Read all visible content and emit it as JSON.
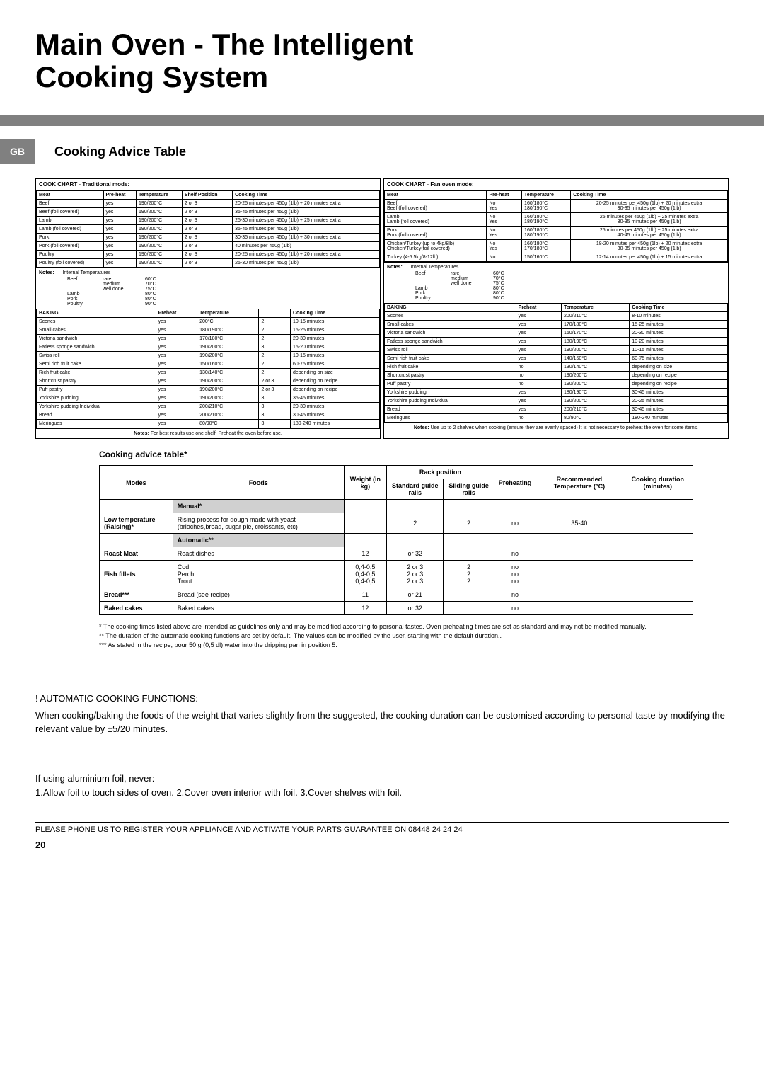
{
  "title_line1": "Main Oven - The Intelligent",
  "title_line2": "Cooking System",
  "gb_badge": "GB",
  "subtitle": "Cooking Advice Table",
  "traditional": {
    "title": "COOK CHART - Traditional mode:",
    "headers": [
      "Meat",
      "Pre-heat",
      "Temperature",
      "Shelf Position",
      "Cooking Time"
    ],
    "rows": [
      [
        "Beef",
        "yes",
        "190/200°C",
        "2 or 3",
        "20-25 minutes per 450g (1lb) + 20 minutes extra"
      ],
      [
        "Beef (foil covered)",
        "yes",
        "190/200°C",
        "2 or 3",
        "35-45 minutes per 450g (1lb)"
      ],
      [
        "Lamb",
        "yes",
        "190/200°C",
        "2 or 3",
        "25-30 minutes per 450g (1lb) + 25 minutes extra"
      ],
      [
        "Lamb (foil covered)",
        "yes",
        "190/200°C",
        "2 or 3",
        "35-45 minutes per 450g (1lb)"
      ],
      [
        "Pork",
        "yes",
        "190/200°C",
        "2 or 3",
        "30-35 minutes per 450g (1lb) + 30 minutes extra"
      ],
      [
        "Pork (foil covered)",
        "yes",
        "190/200°C",
        "2 or 3",
        "40 minutes per 450g (1lb)"
      ],
      [
        "Poultry",
        "yes",
        "190/200°C",
        "2 or 3",
        "20-25 minutes per 450g (1lb) + 20 minutes extra"
      ],
      [
        "Poultry (foil covered)",
        "yes",
        "190/200°C",
        "2 or 3",
        "25-30 minutes per 450g (1lb)"
      ]
    ],
    "notes_title": "Notes:",
    "notes_sub": "Internal Temperatures",
    "temps": [
      [
        "Beef",
        "rare",
        "60°C"
      ],
      [
        "",
        "medium",
        "70°C"
      ],
      [
        "",
        "well done",
        "75°C"
      ],
      [
        "Lamb",
        "",
        "80°C"
      ],
      [
        "Pork",
        "",
        "80°C"
      ],
      [
        "Poultry",
        "",
        "90°C"
      ]
    ],
    "baking_headers": [
      "BAKING",
      "Preheat",
      "Temperature",
      "",
      "Cooking Time"
    ],
    "baking_rows": [
      [
        "Scones",
        "yes",
        "200°C",
        "2",
        "10-15 minutes"
      ],
      [
        "Small cakes",
        "yes",
        "180/190°C",
        "2",
        "15-25 minutes"
      ],
      [
        "Victoria sandwich",
        "yes",
        "170/180°C",
        "2",
        "20-30 minutes"
      ],
      [
        "Fatless sponge sandwich",
        "yes",
        "190/200°C",
        "3",
        "15-20 minutes"
      ],
      [
        "Swiss roll",
        "yes",
        "190/200°C",
        "2",
        "10-15 minutes"
      ],
      [
        "Semi rich fruit cake",
        "yes",
        "150/160°C",
        "2",
        "60-75 minutes"
      ],
      [
        "Rich fruit cake",
        "yes",
        "130/140°C",
        "2",
        "depending on size"
      ],
      [
        "Shortcrust pastry",
        "yes",
        "190/200°C",
        "2 or 3",
        "depending on recipe"
      ],
      [
        "Puff pastry",
        "yes",
        "190/200°C",
        "2 or 3",
        "depending on recipe"
      ],
      [
        "Yorkshire pudding",
        "yes",
        "190/200°C",
        "3",
        "35-45 minutes"
      ],
      [
        "Yorkshire pudding Individual",
        "yes",
        "200/210°C",
        "3",
        "20-30 minutes"
      ],
      [
        "Bread",
        "yes",
        "200/210°C",
        "3",
        "30-45 minutes"
      ],
      [
        "Meringues",
        "yes",
        "80/90°C",
        "3",
        "180-240 minutes"
      ]
    ],
    "footer_note": "For best results use one shelf. Preheat the oven before use."
  },
  "fan": {
    "title": "COOK CHART - Fan oven mode:",
    "headers": [
      "Meat",
      "Pre-heat",
      "Temperature",
      "Cooking Time"
    ],
    "rows": [
      [
        "Beef\nBeef (foil covered)",
        "No\nYes",
        "160/180°C\n180/190°C",
        "20-25 minutes per 450g (1lb) + 20 minutes extra\n30-35 minutes per 450g (1lb)"
      ],
      [
        "Lamb\nLamb (foil covered)",
        "No\nYes",
        "160/180°C\n180/190°C",
        "25 minutes per 450g (1lb) + 25 minutes extra\n30-35 minutes per 450g (1lb)"
      ],
      [
        "Pork\nPork (foil covered)",
        "No\nYes",
        "160/180°C\n180/190°C",
        "25 minutes per 450g (1lb) + 25 minutes extra\n40-45 minutes per 450g (1lb)"
      ],
      [
        "Chicken/Turkey (up to 4kg/8lb)\nChicken/Turkey(foil covered)",
        "No\nYes",
        "160/180°C\n170/180°C",
        "18-20 minutes per 450g (1lb) + 20 minutes extra\n30-35 minutes per 450g (1lb)"
      ],
      [
        "Turkey (4-5.5kg/8-12lb)",
        "No",
        "150/160°C",
        "12-14 minutes per 450g (1lb) + 15 minutes extra"
      ]
    ],
    "notes_title": "Notes:",
    "notes_sub": "Internal Temperatures",
    "temps": [
      [
        "Beef",
        "rare",
        "60°C"
      ],
      [
        "",
        "medium",
        "70°C"
      ],
      [
        "",
        "well done",
        "75°C"
      ],
      [
        "Lamb",
        "",
        "80°C"
      ],
      [
        "Pork",
        "",
        "80°C"
      ],
      [
        "Poultry",
        "",
        "90°C"
      ]
    ],
    "baking_headers": [
      "BAKING",
      "Preheat",
      "Temperature",
      "Cooking Time"
    ],
    "baking_rows": [
      [
        "Scones",
        "yes",
        "200/210°C",
        "8-10 minutes"
      ],
      [
        "Small cakes",
        "yes",
        "170/180°C",
        "15-25 minutes"
      ],
      [
        "Victoria sandwich",
        "yes",
        "160/170°C",
        "20-30 minutes"
      ],
      [
        "Fatless sponge sandwich",
        "yes",
        "180/190°C",
        "10-20 minutes"
      ],
      [
        "Swiss roll",
        "yes",
        "190/200°C",
        "10-15 minutes"
      ],
      [
        "Semi rich fruit cake",
        "yes",
        "140/150°C",
        "60-75 minutes"
      ],
      [
        "Rich fruit cake",
        "no",
        "130/140°C",
        "depending on size"
      ],
      [
        "Shortcrust pastry",
        "no",
        "190/200°C",
        "depending on recipe"
      ],
      [
        "Puff pastry",
        "no",
        "190/200°C",
        "depending on recipe"
      ],
      [
        "Yorkshire pudding",
        "yes",
        "180/190°C",
        "30-45 minutes"
      ],
      [
        "Yorkshire pudding Individual",
        "yes",
        "190/200°C",
        "20-25 minutes"
      ],
      [
        "Bread",
        "yes",
        "200/210°C",
        "30-45 minutes"
      ],
      [
        "Meringues",
        "no",
        "80/90°C",
        "180-240 minutes"
      ]
    ],
    "footer_note": "Use up to 2 shelves when cooking (ensure they are evenly spaced) It is not necessary to preheat the oven for some items."
  },
  "advice": {
    "title": "Cooking advice table*",
    "headers": {
      "modes": "Modes",
      "foods": "Foods",
      "weight": "Weight (in kg)",
      "rack": "Rack position",
      "standard": "Standard guide rails",
      "sliding": "Sliding guide rails",
      "preheat": "Preheating",
      "temp": "Recommended Temperature (°C)",
      "duration": "Cooking duration (minutes)"
    },
    "rows": [
      {
        "type": "mode",
        "label": "Manual*"
      },
      {
        "type": "data",
        "mode": "Low temperature (Raising)*",
        "food": "Rising process for dough made with yeast (brioches,bread, sugar pie, croissants, etc)",
        "weight": "",
        "std": "2",
        "slide": "2",
        "preheat": "no",
        "temp": "35-40",
        "dur": ""
      },
      {
        "type": "mode",
        "label": "Automatic**"
      },
      {
        "type": "data",
        "mode": "Roast Meat",
        "food": "Roast dishes",
        "weight": "12",
        "std": "or 32",
        "slide": "",
        "preheat": "no",
        "temp": "",
        "dur": ""
      },
      {
        "type": "data",
        "mode": "Fish fillets",
        "food": "Cod\nPerch\nTrout",
        "weight": "0,4-0,5\n0,4-0,5\n0,4-0,5",
        "std": "2 or 3\n2 or 3\n2 or 3",
        "slide": "2\n2\n2",
        "preheat": "no\nno\nno",
        "temp": "",
        "dur": ""
      },
      {
        "type": "data",
        "mode": "Bread***",
        "food": "Bread (see recipe)",
        "weight": "11",
        "std": "or 21",
        "slide": "",
        "preheat": "no",
        "temp": "",
        "dur": ""
      },
      {
        "type": "data",
        "mode": "Baked cakes",
        "food": "Baked cakes",
        "weight": "12",
        "std": "or 32",
        "slide": "",
        "preheat": "no",
        "temp": "",
        "dur": ""
      }
    ],
    "star_notes": [
      "* The cooking times listed above are intended as guidelines only and may be modified according to personal tastes. Oven preheating times are set as standard and may not be modified manually.",
      "** The duration of the automatic cooking functions are set by default. The values can be modified by the user, starting with the default duration..",
      "*** As stated in the recipe, pour 50 g (0,5 dl) water into the dripping pan in position 5."
    ]
  },
  "auto_section": {
    "heading": "! AUTOMATIC COOKING FUNCTIONS:",
    "body": "When cooking/baking the foods of the weight that varies slightly from the suggested, the cooking duration can be customised according to  personal taste by modifying the relevant value by ±5/20 minutes."
  },
  "foil_section": {
    "line1": "If using aluminium foil, never:",
    "line2": "1.Allow foil to touch sides of oven. 2.Cover oven interior with foil. 3.Cover shelves with foil."
  },
  "bottom_bar": "PLEASE PHONE US TO REGISTER YOUR APPLIANCE  AND ACTIVATE YOUR PARTS GUARANTEE ON 08448 24 24 24",
  "page_num": "20"
}
